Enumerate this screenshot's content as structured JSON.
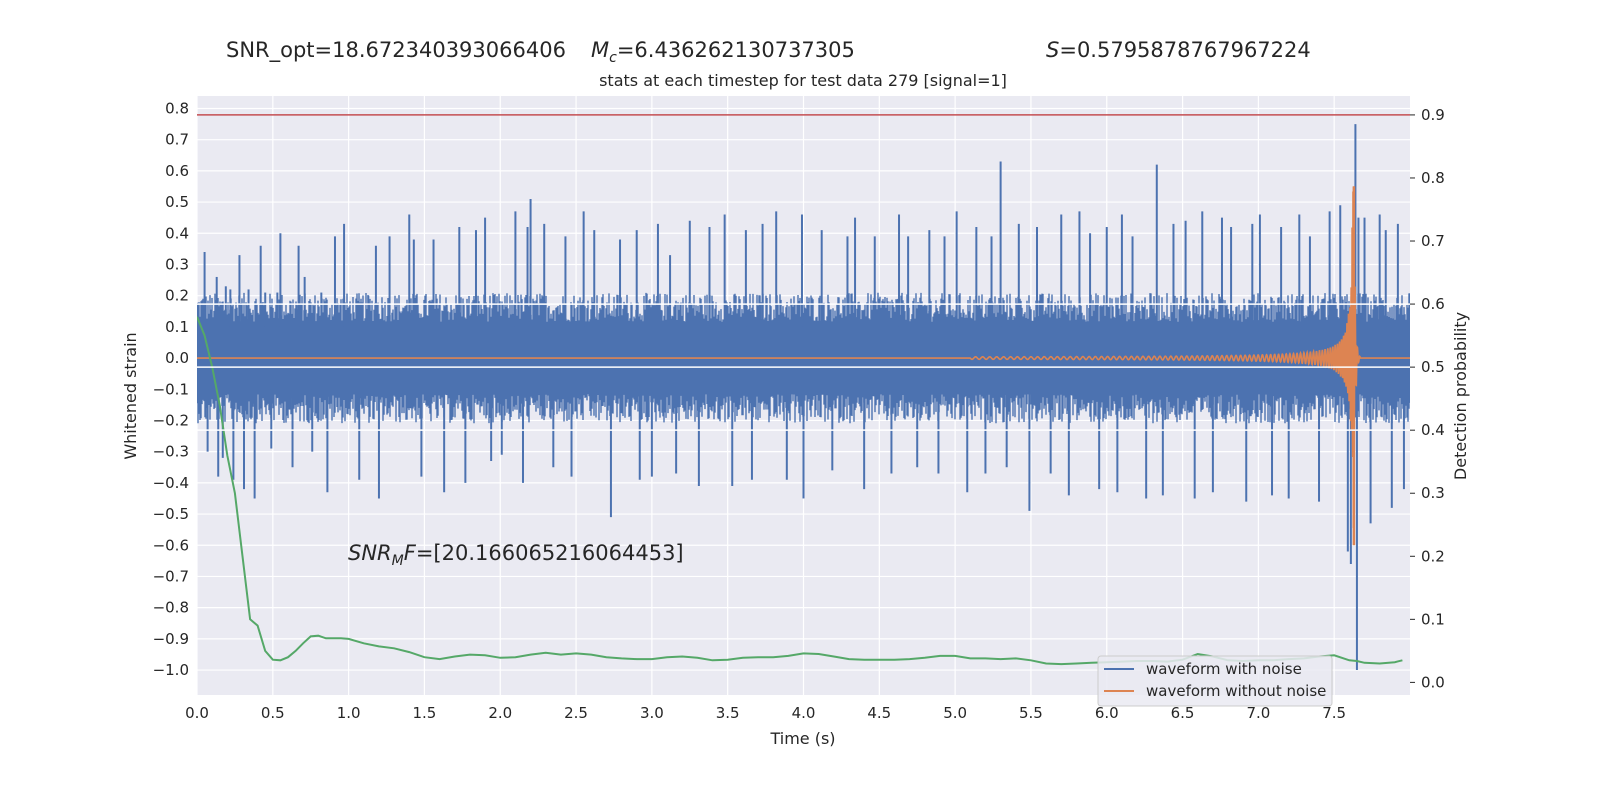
{
  "header": {
    "snr_opt": "SNR_opt=18.672340393066406",
    "mc_symbol": "M",
    "mc_sub": "c",
    "mc_value": "=6.436262130737305",
    "s_symbol": "S",
    "s_value": "=0.5795878767967224"
  },
  "annotation": {
    "prefix": "SNR",
    "sub": "M",
    "suffix": "F",
    "value": "=[20.166065216064453]"
  },
  "chart_data": {
    "type": "line",
    "title": "stats at each timestep for test data 279 [signal=1]",
    "xlabel": "Time (s)",
    "ylabel": "Whitened strain",
    "y2label": "Detection probability",
    "xlim": [
      0.0,
      8.0
    ],
    "ylim": [
      -1.08,
      0.84
    ],
    "y2lim": [
      -0.02,
      0.93
    ],
    "xticks": [
      "0.0",
      "0.5",
      "1.0",
      "1.5",
      "2.0",
      "2.5",
      "3.0",
      "3.5",
      "4.0",
      "4.5",
      "5.0",
      "5.5",
      "6.0",
      "6.5",
      "7.0",
      "7.5"
    ],
    "yticks": [
      "0.8",
      "0.7",
      "0.6",
      "0.5",
      "0.4",
      "0.3",
      "0.2",
      "0.1",
      "0.0",
      "−0.1",
      "−0.2",
      "−0.3",
      "−0.4",
      "−0.5",
      "−0.6",
      "−0.7",
      "−0.8",
      "−0.9",
      "−1.0"
    ],
    "y2ticks": [
      "0.9",
      "0.8",
      "0.7",
      "0.6",
      "0.5",
      "0.4",
      "0.3",
      "0.2",
      "0.1",
      "0.0"
    ],
    "grid": true,
    "colors": {
      "noise": "#4c72b0",
      "clean": "#dd8452",
      "prob": "#55a868",
      "threshold": "#c44e52",
      "background": "#eaeaf2",
      "grid": "#ffffff"
    },
    "hlines_prob": [
      0.9,
      0.6,
      0.5,
      0.4
    ],
    "series": [
      {
        "name": "waveform with noise",
        "axis": "left",
        "band": 0.155,
        "spikes": [
          [
            0.05,
            0.34
          ],
          [
            0.07,
            -0.3
          ],
          [
            0.13,
            0.26
          ],
          [
            0.14,
            -0.38
          ],
          [
            0.17,
            -0.32
          ],
          [
            0.19,
            0.23
          ],
          [
            0.22,
            0.22
          ],
          [
            0.24,
            -0.39
          ],
          [
            0.28,
            0.33
          ],
          [
            0.31,
            -0.42
          ],
          [
            0.34,
            0.22
          ],
          [
            0.38,
            -0.45
          ],
          [
            0.42,
            0.36
          ],
          [
            0.45,
            0.21
          ],
          [
            0.49,
            -0.29
          ],
          [
            0.53,
            0.21
          ],
          [
            0.55,
            0.4
          ],
          [
            0.63,
            -0.35
          ],
          [
            0.67,
            0.36
          ],
          [
            0.71,
            0.26
          ],
          [
            0.76,
            -0.3
          ],
          [
            0.82,
            0.21
          ],
          [
            0.86,
            -0.43
          ],
          [
            0.91,
            0.39
          ],
          [
            0.97,
            0.43
          ],
          [
            1.07,
            -0.39
          ],
          [
            1.13,
            0.2
          ],
          [
            1.18,
            0.36
          ],
          [
            1.2,
            -0.45
          ],
          [
            1.27,
            0.39
          ],
          [
            1.4,
            0.46
          ],
          [
            1.43,
            0.38
          ],
          [
            1.48,
            -0.38
          ],
          [
            1.56,
            0.38
          ],
          [
            1.63,
            -0.43
          ],
          [
            1.73,
            0.42
          ],
          [
            1.77,
            -0.4
          ],
          [
            1.84,
            0.41
          ],
          [
            1.9,
            0.45
          ],
          [
            1.94,
            -0.33
          ],
          [
            2.01,
            -0.31
          ],
          [
            2.1,
            0.47
          ],
          [
            2.15,
            -0.4
          ],
          [
            2.18,
            0.42
          ],
          [
            2.2,
            0.51
          ],
          [
            2.29,
            0.43
          ],
          [
            2.35,
            -0.35
          ],
          [
            2.43,
            0.39
          ],
          [
            2.47,
            -0.38
          ],
          [
            2.55,
            0.47
          ],
          [
            2.62,
            0.41
          ],
          [
            2.73,
            -0.51
          ],
          [
            2.79,
            0.38
          ],
          [
            2.9,
            0.41
          ],
          [
            2.92,
            -0.39
          ],
          [
            3.0,
            -0.38
          ],
          [
            3.04,
            0.43
          ],
          [
            3.12,
            0.33
          ],
          [
            3.16,
            -0.37
          ],
          [
            3.25,
            0.44
          ],
          [
            3.31,
            -0.41
          ],
          [
            3.38,
            0.42
          ],
          [
            3.48,
            0.46
          ],
          [
            3.53,
            -0.41
          ],
          [
            3.62,
            0.41
          ],
          [
            3.66,
            -0.39
          ],
          [
            3.73,
            0.43
          ],
          [
            3.82,
            0.47
          ],
          [
            3.89,
            -0.39
          ],
          [
            3.99,
            0.46
          ],
          [
            4.0,
            -0.45
          ],
          [
            4.12,
            0.41
          ],
          [
            4.19,
            -0.36
          ],
          [
            4.29,
            0.39
          ],
          [
            4.34,
            0.45
          ],
          [
            4.4,
            -0.42
          ],
          [
            4.47,
            0.39
          ],
          [
            4.58,
            -0.37
          ],
          [
            4.63,
            0.46
          ],
          [
            4.69,
            0.39
          ],
          [
            4.75,
            -0.35
          ],
          [
            4.83,
            0.41
          ],
          [
            4.89,
            -0.37
          ],
          [
            4.93,
            0.39
          ],
          [
            5.01,
            0.47
          ],
          [
            5.08,
            -0.43
          ],
          [
            5.14,
            0.42
          ],
          [
            5.2,
            -0.37
          ],
          [
            5.24,
            0.39
          ],
          [
            5.3,
            0.63
          ],
          [
            5.34,
            -0.35
          ],
          [
            5.42,
            0.43
          ],
          [
            5.49,
            -0.49
          ],
          [
            5.54,
            0.42
          ],
          [
            5.63,
            -0.37
          ],
          [
            5.7,
            0.46
          ],
          [
            5.75,
            -0.44
          ],
          [
            5.82,
            0.47
          ],
          [
            5.89,
            0.4
          ],
          [
            5.95,
            -0.42
          ],
          [
            6.0,
            0.42
          ],
          [
            6.07,
            -0.43
          ],
          [
            6.1,
            0.46
          ],
          [
            6.17,
            0.39
          ],
          [
            6.26,
            -0.45
          ],
          [
            6.33,
            0.62
          ],
          [
            6.37,
            -0.44
          ],
          [
            6.44,
            0.43
          ],
          [
            6.52,
            0.44
          ],
          [
            6.58,
            -0.45
          ],
          [
            6.63,
            0.47
          ],
          [
            6.7,
            -0.43
          ],
          [
            6.76,
            0.45
          ],
          [
            6.82,
            0.42
          ],
          [
            6.92,
            -0.46
          ],
          [
            6.96,
            0.43
          ],
          [
            7.01,
            0.46
          ],
          [
            7.09,
            -0.44
          ],
          [
            7.15,
            0.42
          ],
          [
            7.2,
            -0.45
          ],
          [
            7.27,
            0.46
          ],
          [
            7.34,
            0.39
          ],
          [
            7.4,
            -0.46
          ],
          [
            7.47,
            0.47
          ],
          [
            7.54,
            0.49
          ],
          [
            7.59,
            -0.62
          ],
          [
            7.61,
            -0.66
          ],
          [
            7.64,
            0.75
          ],
          [
            7.65,
            -1.0
          ],
          [
            7.66,
            0.45
          ],
          [
            7.7,
            0.45
          ],
          [
            7.74,
            -0.53
          ],
          [
            7.8,
            0.46
          ],
          [
            7.84,
            0.41
          ],
          [
            7.88,
            -0.48
          ],
          [
            7.92,
            0.43
          ],
          [
            7.96,
            -0.42
          ]
        ]
      },
      {
        "name": "waveform without noise",
        "axis": "left",
        "chirp": {
          "start": 5.1,
          "merger": 7.63,
          "end": 7.67,
          "peak_pos": 0.55,
          "peak_neg": -0.6,
          "base_amp": 0.004
        }
      },
      {
        "name": "detection probability",
        "axis": "right",
        "x": [
          0.0,
          0.05,
          0.1,
          0.15,
          0.2,
          0.25,
          0.3,
          0.35,
          0.4,
          0.45,
          0.5,
          0.55,
          0.6,
          0.65,
          0.7,
          0.75,
          0.8,
          0.85,
          0.9,
          0.95,
          1.0,
          1.1,
          1.2,
          1.3,
          1.4,
          1.5,
          1.6,
          1.7,
          1.8,
          1.9,
          2.0,
          2.1,
          2.2,
          2.3,
          2.4,
          2.5,
          2.6,
          2.7,
          2.8,
          2.9,
          3.0,
          3.1,
          3.2,
          3.3,
          3.4,
          3.5,
          3.6,
          3.7,
          3.8,
          3.9,
          4.0,
          4.1,
          4.2,
          4.3,
          4.4,
          4.5,
          4.6,
          4.7,
          4.8,
          4.9,
          5.0,
          5.1,
          5.2,
          5.3,
          5.4,
          5.5,
          5.6,
          5.7,
          5.8,
          5.9,
          6.0,
          6.1,
          6.2,
          6.3,
          6.4,
          6.5,
          6.6,
          6.7,
          6.8,
          6.9,
          7.0,
          7.1,
          7.2,
          7.3,
          7.4,
          7.5,
          7.6,
          7.65,
          7.7,
          7.8,
          7.9,
          7.95
        ],
        "y": [
          0.58,
          0.55,
          0.5,
          0.44,
          0.36,
          0.3,
          0.2,
          0.1,
          0.09,
          0.05,
          0.036,
          0.035,
          0.04,
          0.05,
          0.062,
          0.073,
          0.074,
          0.07,
          0.07,
          0.07,
          0.069,
          0.062,
          0.057,
          0.054,
          0.048,
          0.04,
          0.037,
          0.041,
          0.044,
          0.043,
          0.039,
          0.04,
          0.044,
          0.047,
          0.044,
          0.046,
          0.044,
          0.04,
          0.038,
          0.037,
          0.037,
          0.04,
          0.041,
          0.039,
          0.035,
          0.036,
          0.039,
          0.04,
          0.04,
          0.042,
          0.046,
          0.045,
          0.041,
          0.037,
          0.036,
          0.036,
          0.036,
          0.037,
          0.039,
          0.042,
          0.042,
          0.038,
          0.038,
          0.037,
          0.038,
          0.035,
          0.03,
          0.029,
          0.03,
          0.031,
          0.032,
          0.033,
          0.034,
          0.034,
          0.033,
          0.036,
          0.045,
          0.041,
          0.035,
          0.034,
          0.035,
          0.035,
          0.037,
          0.038,
          0.041,
          0.043,
          0.035,
          0.034,
          0.031,
          0.03,
          0.032,
          0.035
        ]
      }
    ],
    "legend": {
      "placement": "lower-right",
      "entries": [
        "waveform with noise",
        "waveform without noise"
      ]
    }
  }
}
